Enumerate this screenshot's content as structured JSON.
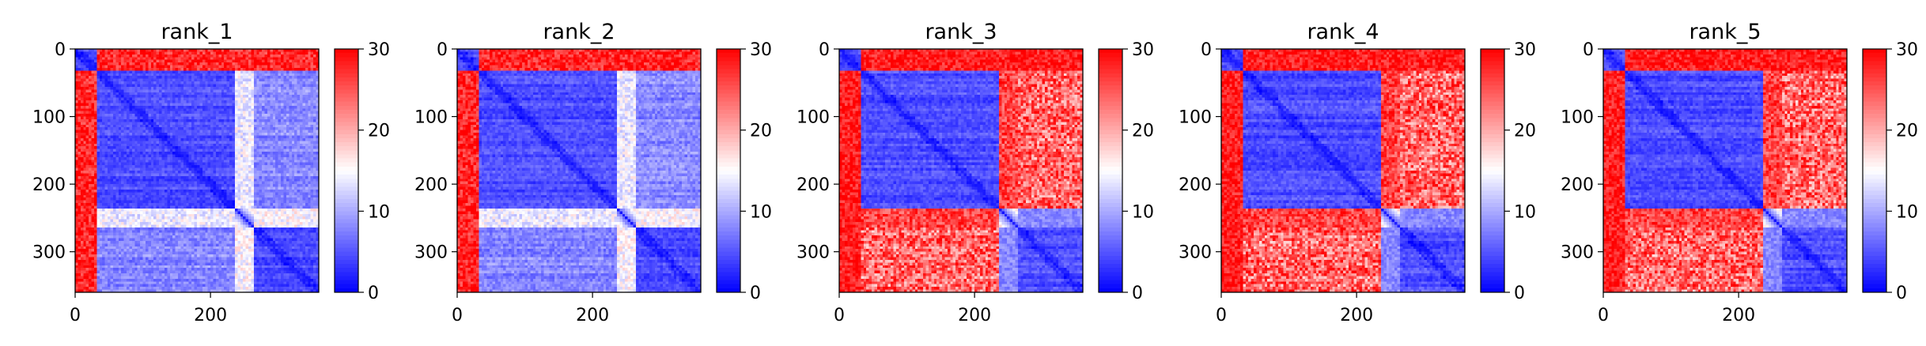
{
  "chart_data": [
    {
      "type": "heatmap",
      "title": "rank_1",
      "xticks": [
        0,
        200
      ],
      "yticks": [
        0,
        100,
        200,
        300
      ],
      "xlim": [
        0,
        360
      ],
      "ylim": [
        0,
        360
      ],
      "colorbar": {
        "ticks": [
          0,
          10,
          20,
          30
        ],
        "range": [
          0,
          30
        ],
        "colormap": [
          "#0000ff",
          "#ffffff",
          "#ff0000"
        ]
      },
      "domains": [
        [
          0,
          34
        ],
        [
          34,
          238
        ],
        [
          238,
          264
        ],
        [
          264,
          360
        ]
      ],
      "interdomain_pattern": "A"
    },
    {
      "type": "heatmap",
      "title": "rank_2",
      "xticks": [
        0,
        200
      ],
      "yticks": [
        0,
        100,
        200,
        300
      ],
      "xlim": [
        0,
        360
      ],
      "ylim": [
        0,
        360
      ],
      "colorbar": {
        "ticks": [
          0,
          10,
          20,
          30
        ],
        "range": [
          0,
          30
        ],
        "colormap": [
          "#0000ff",
          "#ffffff",
          "#ff0000"
        ]
      },
      "domains": [
        [
          0,
          34
        ],
        [
          34,
          238
        ],
        [
          238,
          264
        ],
        [
          264,
          360
        ]
      ],
      "interdomain_pattern": "A"
    },
    {
      "type": "heatmap",
      "title": "rank_3",
      "xticks": [
        0,
        200
      ],
      "yticks": [
        0,
        100,
        200,
        300
      ],
      "xlim": [
        0,
        360
      ],
      "ylim": [
        0,
        360
      ],
      "colorbar": {
        "ticks": [
          0,
          10,
          20,
          30
        ],
        "range": [
          0,
          30
        ],
        "colormap": [
          "#0000ff",
          "#ffffff",
          "#ff0000"
        ]
      },
      "domains": [
        [
          0,
          34
        ],
        [
          34,
          238
        ],
        [
          238,
          264
        ],
        [
          264,
          360
        ]
      ],
      "interdomain_pattern": "B"
    },
    {
      "type": "heatmap",
      "title": "rank_4",
      "xticks": [
        0,
        200
      ],
      "yticks": [
        0,
        100,
        200,
        300
      ],
      "xlim": [
        0,
        360
      ],
      "ylim": [
        0,
        360
      ],
      "colorbar": {
        "ticks": [
          0,
          10,
          20,
          30
        ],
        "range": [
          0,
          30
        ],
        "colormap": [
          "#0000ff",
          "#ffffff",
          "#ff0000"
        ]
      },
      "domains": [
        [
          0,
          34
        ],
        [
          34,
          238
        ],
        [
          238,
          264
        ],
        [
          264,
          360
        ]
      ],
      "interdomain_pattern": "B"
    },
    {
      "type": "heatmap",
      "title": "rank_5",
      "xticks": [
        0,
        200
      ],
      "yticks": [
        0,
        100,
        200,
        300
      ],
      "xlim": [
        0,
        360
      ],
      "ylim": [
        0,
        360
      ],
      "colorbar": {
        "ticks": [
          0,
          10,
          20,
          30
        ],
        "range": [
          0,
          30
        ],
        "colormap": [
          "#0000ff",
          "#ffffff",
          "#ff0000"
        ]
      },
      "domains": [
        [
          0,
          34
        ],
        [
          34,
          238
        ],
        [
          238,
          264
        ],
        [
          264,
          360
        ]
      ],
      "interdomain_pattern": "B"
    }
  ]
}
